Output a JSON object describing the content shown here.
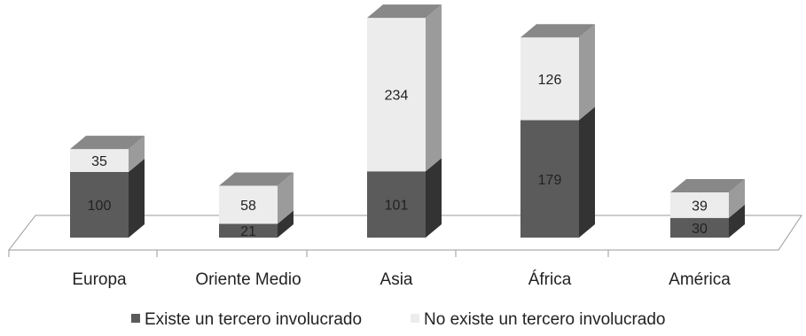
{
  "chart_data": {
    "type": "bar",
    "stacked": true,
    "three_d": true,
    "categories": [
      "Europa",
      "Oriente Medio",
      "Asia",
      "África",
      "América"
    ],
    "series": [
      {
        "name": "Existe un tercero involucrado",
        "values": [
          100,
          21,
          101,
          179,
          30
        ],
        "color": "#5a5a5a"
      },
      {
        "name": "No existe un tercero involucrado",
        "values": [
          35,
          58,
          234,
          126,
          39
        ],
        "color": "#ececec"
      }
    ],
    "title": "",
    "xlabel": "",
    "ylabel": "",
    "ylim": [
      0,
      335
    ],
    "grid": false,
    "legend_position": "bottom"
  }
}
